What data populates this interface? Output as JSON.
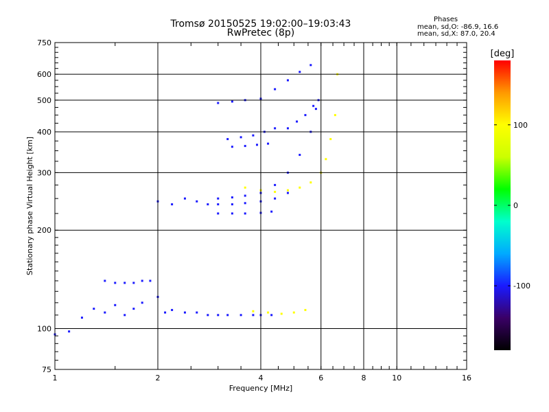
{
  "header": {
    "title_line1": "Tromsø 20150525 19:02:00–19:03:43",
    "title_line2": "RwPretec (8p)"
  },
  "stats": {
    "heading": "Phases",
    "o_line": "mean, sd,O: -86.9, 16.6",
    "x_line": "mean, sd,X:  87.0, 20.4"
  },
  "chart_data": {
    "type": "scatter",
    "title": "Tromsø 20150525 19:02:00–19:03:43",
    "subtitle": "RwPretec (8p)",
    "xlabel": "Frequency [MHz]",
    "ylabel": "Stationary phase Virtual Height [km]",
    "x_scale": "log",
    "y_scale": "log",
    "xlim": [
      1,
      16
    ],
    "ylim": [
      75,
      750
    ],
    "x_ticks": [
      1,
      2,
      4,
      6,
      8,
      10,
      16
    ],
    "y_ticks": [
      75,
      100,
      200,
      300,
      400,
      500,
      600,
      750
    ],
    "grid": true,
    "colorbar": {
      "label": "[deg]",
      "range": [
        -180,
        180
      ],
      "ticks": [
        100,
        0,
        -100
      ],
      "colors": [
        "#000000",
        "#3a0066",
        "#1a1aff",
        "#00aaff",
        "#00ffcc",
        "#00ff00",
        "#ccff00",
        "#ffff00",
        "#ff9900",
        "#ff0000"
      ]
    },
    "series": [
      {
        "name": "O",
        "phase": -100,
        "x": [
          1.0,
          1.1,
          1.2,
          1.3,
          1.4,
          1.5,
          1.6,
          1.7,
          1.8,
          1.9,
          2.0,
          2.1,
          2.2,
          2.4,
          2.6,
          2.8,
          3.0,
          3.2,
          3.5,
          3.8,
          4.0,
          4.3
        ],
        "y": [
          96,
          98,
          108,
          115,
          112,
          118,
          110,
          115,
          120,
          140,
          125,
          112,
          114,
          112,
          112,
          110,
          110,
          110,
          110,
          110,
          110,
          110
        ]
      },
      {
        "name": "O",
        "phase": -100,
        "x": [
          1.4,
          1.5,
          1.6,
          1.7,
          1.8
        ],
        "y": [
          140,
          138,
          138,
          138,
          140
        ]
      },
      {
        "name": "O",
        "phase": -100,
        "x": [
          2.0,
          2.2,
          2.4,
          2.6,
          2.8,
          3.0,
          3.3,
          3.6,
          4.0,
          4.4,
          4.8
        ],
        "y": [
          245,
          240,
          250,
          245,
          240,
          240,
          240,
          242,
          245,
          250,
          260
        ]
      },
      {
        "name": "O",
        "phase": -100,
        "x": [
          3.0,
          3.3,
          3.6,
          4.0,
          4.3
        ],
        "y": [
          225,
          225,
          225,
          226,
          228
        ]
      },
      {
        "name": "O",
        "phase": -100,
        "x": [
          3.0,
          3.3,
          3.6,
          4.0,
          4.4,
          4.8,
          5.2,
          5.6,
          5.8
        ],
        "y": [
          250,
          252,
          255,
          260,
          275,
          300,
          340,
          400,
          470
        ]
      },
      {
        "name": "O",
        "phase": -100,
        "x": [
          3.2,
          3.5,
          3.8,
          4.1,
          4.4
        ],
        "y": [
          380,
          385,
          390,
          400,
          410
        ]
      },
      {
        "name": "O",
        "phase": -100,
        "x": [
          3.3,
          3.6,
          3.9,
          4.2
        ],
        "y": [
          360,
          362,
          365,
          368
        ]
      },
      {
        "name": "O",
        "phase": -100,
        "x": [
          3.0,
          3.3,
          3.6,
          4.0,
          4.4,
          4.8,
          5.2,
          5.6
        ],
        "y": [
          490,
          495,
          500,
          505,
          540,
          575,
          610,
          640
        ]
      },
      {
        "name": "O",
        "phase": -100,
        "x": [
          4.8,
          5.1,
          5.4,
          5.7,
          5.9
        ],
        "y": [
          410,
          430,
          450,
          480,
          500
        ]
      },
      {
        "name": "X",
        "phase": 100,
        "x": [
          3.6,
          4.0,
          4.4,
          4.8,
          5.2,
          5.6,
          6.0,
          6.2,
          6.4,
          6.6,
          6.7
        ],
        "y": [
          270,
          265,
          262,
          265,
          270,
          280,
          300,
          330,
          380,
          450,
          600
        ]
      },
      {
        "name": "X",
        "phase": 100,
        "x": [
          3.8,
          4.2,
          4.6,
          5.0,
          5.4
        ],
        "y": [
          113,
          112,
          111,
          112,
          114
        ]
      }
    ]
  }
}
